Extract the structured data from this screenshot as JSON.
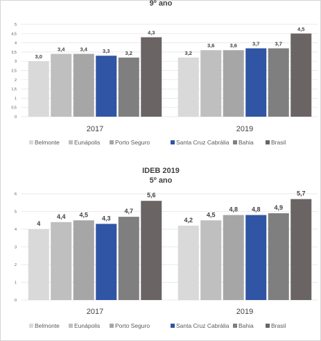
{
  "colors": {
    "Belmonte": "#d9d9d9",
    "Eunápolis": "#bfbfbf",
    "Porto Seguro": "#a6a6a6",
    "Santa Cruz Cabrália": "#2f55a4",
    "Bahia": "#7f7f7f",
    "Brasil": "#6b6464"
  },
  "chart_data": [
    {
      "type": "bar",
      "title": "",
      "subtitle": "9º ano",
      "categories": [
        "2017",
        "2019"
      ],
      "series": [
        {
          "name": "Belmonte",
          "values": [
            3.0,
            3.2
          ],
          "labels": [
            "3,0",
            "3,2"
          ]
        },
        {
          "name": "Eunápolis",
          "values": [
            3.4,
            3.6
          ],
          "labels": [
            "3,4",
            "3,6"
          ]
        },
        {
          "name": "Porto Seguro",
          "values": [
            3.4,
            3.6
          ],
          "labels": [
            "3,4",
            "3,6"
          ]
        },
        {
          "name": "Santa Cruz Cabrália",
          "values": [
            3.3,
            3.7
          ],
          "labels": [
            "3,3",
            "3,7"
          ]
        },
        {
          "name": "Bahia",
          "values": [
            3.2,
            3.7
          ],
          "labels": [
            "3,2",
            "3,7"
          ]
        },
        {
          "name": "Brasil",
          "values": [
            4.3,
            4.5
          ],
          "labels": [
            "4,3",
            "4,5"
          ]
        }
      ],
      "ylim": [
        0,
        5
      ],
      "yticks": [
        "0",
        "0,5",
        "1",
        "1,5",
        "2",
        "2,5",
        "3",
        "3,5",
        "4",
        "4,5",
        "5"
      ],
      "grid": true,
      "legend": "bottom"
    },
    {
      "type": "bar",
      "title": "IDEB 2019",
      "subtitle": "5º ano",
      "categories": [
        "2017",
        "2019"
      ],
      "series": [
        {
          "name": "Belmonte",
          "values": [
            4.0,
            4.2
          ],
          "labels": [
            "4",
            "4,2"
          ]
        },
        {
          "name": "Eunápolis",
          "values": [
            4.4,
            4.5
          ],
          "labels": [
            "4,4",
            "4,5"
          ]
        },
        {
          "name": "Porto Seguro",
          "values": [
            4.5,
            4.8
          ],
          "labels": [
            "4,5",
            "4,8"
          ]
        },
        {
          "name": "Santa Cruz Cabrália",
          "values": [
            4.3,
            4.8
          ],
          "labels": [
            "4,3",
            "4,8"
          ]
        },
        {
          "name": "Bahia",
          "values": [
            4.7,
            4.9
          ],
          "labels": [
            "4,7",
            "4,9"
          ]
        },
        {
          "name": "Brasil",
          "values": [
            5.6,
            5.7
          ],
          "labels": [
            "5,6",
            "5,7"
          ]
        }
      ],
      "ylim": [
        0,
        6
      ],
      "yticks": [
        "0",
        "1",
        "2",
        "3",
        "4",
        "5",
        "6"
      ],
      "grid": true,
      "legend": "bottom"
    }
  ]
}
